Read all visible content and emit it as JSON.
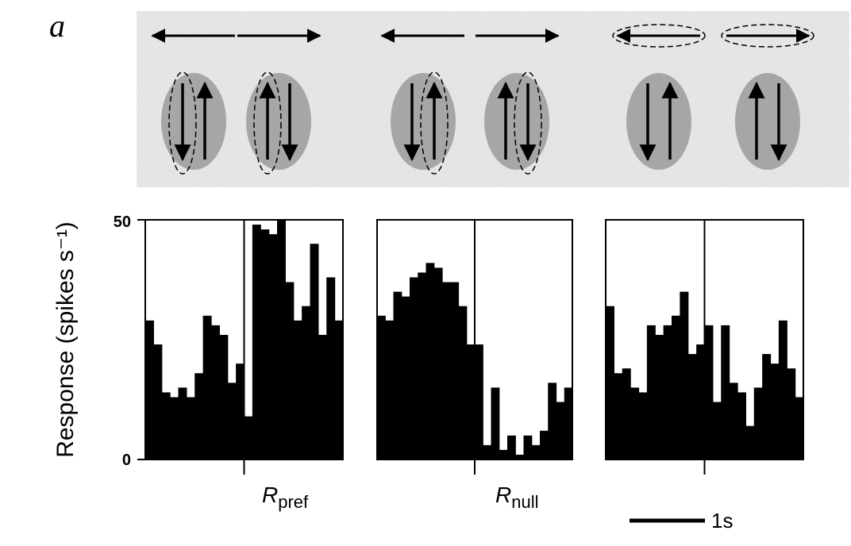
{
  "figure": {
    "panel_letter": "a",
    "scale_bar_label": "1s"
  },
  "colors": {
    "bars": "#000000",
    "stimulus_background": "#e1e1e1",
    "aperture": "#a6a6a6"
  },
  "stimulus_icons": [
    {
      "top_arrow": "left",
      "top_outlined": false,
      "left_arrow": "down",
      "right_arrow": "up",
      "outlined_arrow": "left"
    },
    {
      "top_arrow": "right",
      "top_outlined": false,
      "left_arrow": "up",
      "right_arrow": "down",
      "outlined_arrow": "left"
    },
    {
      "top_arrow": "left",
      "top_outlined": false,
      "left_arrow": "down",
      "right_arrow": "up",
      "outlined_arrow": "right"
    },
    {
      "top_arrow": "right",
      "top_outlined": false,
      "left_arrow": "up",
      "right_arrow": "down",
      "outlined_arrow": "right"
    },
    {
      "top_arrow": "left",
      "top_outlined": true,
      "left_arrow": "down",
      "right_arrow": "up",
      "outlined_arrow": "none"
    },
    {
      "top_arrow": "right",
      "top_outlined": true,
      "left_arrow": "up",
      "right_arrow": "down",
      "outlined_arrow": "none"
    }
  ],
  "chart_data": {
    "type": "bar",
    "ylabel": "Response (spikes s⁻¹)",
    "ylim": [
      0,
      50
    ],
    "yticks": [
      "0",
      "50"
    ],
    "x_unit": "s",
    "bin_width_s": 0.125,
    "panels": [
      {
        "label_main": "R",
        "label_sub": "pref",
        "x_range_s": [
          -1.0,
          1.0
        ],
        "values": [
          29,
          24,
          14,
          13,
          15,
          13,
          18,
          30,
          28,
          26,
          16,
          20,
          9,
          49,
          48,
          47,
          50,
          37,
          29,
          32,
          45,
          26,
          38,
          29
        ]
      },
      {
        "label_main": "R",
        "label_sub": "null",
        "x_range_s": [
          -1.0,
          1.0
        ],
        "values": [
          30,
          29,
          35,
          34,
          38,
          39,
          41,
          40,
          37,
          37,
          32,
          24,
          24,
          3,
          15,
          2,
          5,
          1,
          5,
          3,
          6,
          16,
          12,
          15
        ]
      },
      {
        "label_main": "",
        "label_sub": "",
        "x_range_s": [
          -1.0,
          1.0
        ],
        "values": [
          32,
          18,
          19,
          15,
          14,
          28,
          26,
          28,
          30,
          35,
          22,
          24,
          28,
          12,
          28,
          16,
          14,
          7,
          15,
          22,
          20,
          29,
          19,
          13
        ]
      }
    ]
  }
}
